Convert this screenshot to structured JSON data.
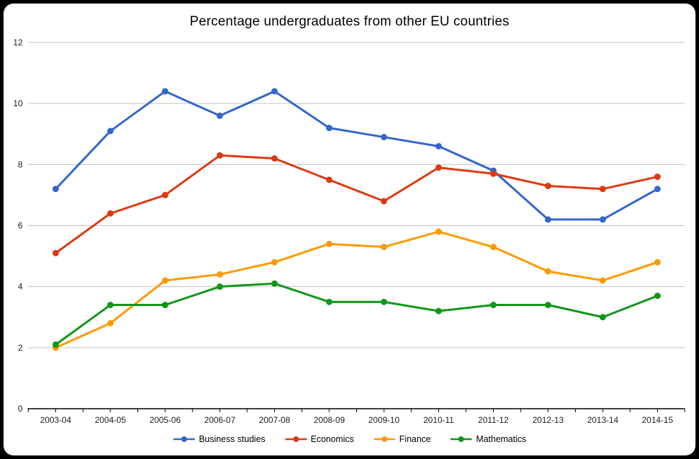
{
  "chart_data": {
    "type": "line",
    "title": "Percentage undergraduates from other EU countries",
    "categories": [
      "2003-04",
      "2004-05",
      "2005-06",
      "2006-07",
      "2007-08",
      "2008-09",
      "2009-10",
      "2010-11",
      "2011-12",
      "2012-13",
      "2013-14",
      "2014-15"
    ],
    "series": [
      {
        "name": "Business studies",
        "color": "#3366CC",
        "values": [
          7.2,
          9.1,
          10.4,
          9.6,
          10.4,
          9.2,
          8.9,
          8.6,
          7.8,
          6.2,
          6.2,
          7.2
        ]
      },
      {
        "name": "Economics",
        "color": "#DC3912",
        "values": [
          5.1,
          6.4,
          7.0,
          8.3,
          8.2,
          7.5,
          6.8,
          7.9,
          7.7,
          7.3,
          7.2,
          7.6
        ]
      },
      {
        "name": "Finance",
        "color": "#FF9900",
        "values": [
          2.0,
          2.8,
          4.2,
          4.4,
          4.8,
          5.4,
          5.3,
          5.8,
          5.3,
          4.5,
          4.2,
          4.8
        ]
      },
      {
        "name": "Mathematics",
        "color": "#109618",
        "values": [
          2.1,
          3.4,
          3.4,
          4.0,
          4.1,
          3.5,
          3.5,
          3.2,
          3.4,
          3.4,
          3.0,
          3.7
        ]
      }
    ],
    "xlabel": "",
    "ylabel": "",
    "ylim": [
      0,
      12
    ],
    "yticks": [
      0,
      2,
      4,
      6,
      8,
      10,
      12
    ],
    "grid": true,
    "legend_position": "bottom",
    "gridline_color": "#C3C3C3",
    "axis_color": "#000000",
    "text_color": "#1a1a1a"
  },
  "frame": {
    "background_color": "#000000",
    "surface_color": "#FFFFFF"
  }
}
